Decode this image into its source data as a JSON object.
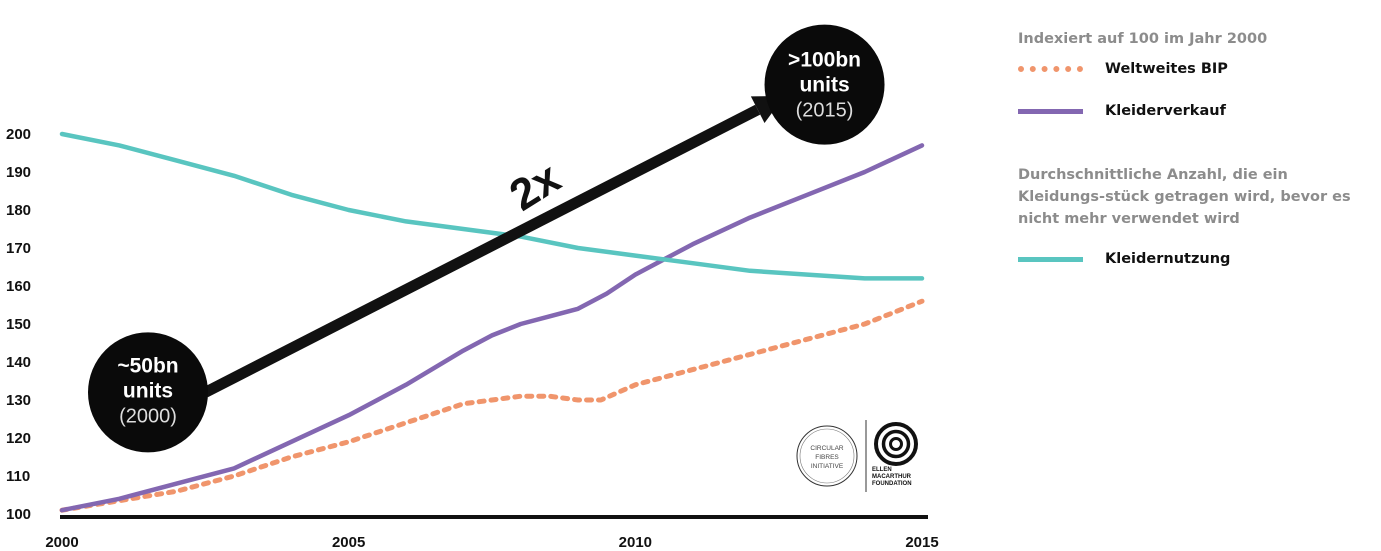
{
  "chart_data": {
    "type": "line",
    "x_ticks": [
      "2000",
      "2005",
      "2010",
      "2015"
    ],
    "y_ticks": [
      "100",
      "110",
      "120",
      "130",
      "140",
      "150",
      "160",
      "170",
      "180",
      "190",
      "200"
    ],
    "xlim": [
      2000,
      2015.2
    ],
    "ylim": [
      100,
      200
    ],
    "grid": false,
    "legend_position": "right",
    "series": [
      {
        "name": "Weltweites BIP",
        "color": "#f0956c",
        "style": "dotted",
        "x": [
          2000,
          2001,
          2002,
          2003,
          2004,
          2005,
          2006,
          2007,
          2008,
          2008.5,
          2009,
          2009.4,
          2010,
          2011,
          2012,
          2013,
          2014,
          2015
        ],
        "y": [
          101,
          103.5,
          106,
          110,
          115,
          119,
          124,
          129,
          131,
          131,
          130,
          130,
          134,
          138,
          142,
          146,
          150,
          156
        ]
      },
      {
        "name": "Kleiderverkauf",
        "color": "#8367b1",
        "style": "solid",
        "x": [
          2000,
          2001,
          2002,
          2003,
          2004,
          2005,
          2006,
          2007,
          2007.5,
          2008,
          2008.5,
          2009,
          2009.5,
          2010,
          2010.5,
          2011,
          2012,
          2013,
          2014,
          2015
        ],
        "y": [
          101,
          104,
          108,
          112,
          119,
          126,
          134,
          143,
          147,
          150,
          152,
          154,
          158,
          163,
          167,
          171,
          178,
          184,
          190,
          197
        ]
      },
      {
        "name": "Kleidernutzung",
        "color": "#59c5c0",
        "style": "solid",
        "x": [
          2000,
          2001,
          2002,
          2003,
          2004,
          2005,
          2006,
          2007,
          2008,
          2009,
          2010,
          2011,
          2012,
          2013,
          2014,
          2015
        ],
        "y": [
          200,
          197,
          193,
          189,
          184,
          180,
          177,
          175,
          173,
          170,
          168,
          166,
          164,
          163,
          162,
          162
        ]
      }
    ],
    "annotations": {
      "start": {
        "line1": "~50bn",
        "line2": "units",
        "line3": "(2000)",
        "x": 2001.5,
        "y": 132
      },
      "end": {
        "line1": ">100bn",
        "line2": "units",
        "line3": "(2015)",
        "x": 2013.3,
        "y": 213
      },
      "arrow_label": "2x",
      "arrow_from": {
        "x": 2002.5,
        "y": 132
      },
      "arrow_to": {
        "x": 2012.6,
        "y": 210
      }
    },
    "logos": {
      "cfi": [
        "CIRCULAR",
        "FIBRES",
        "INITIATIVE"
      ],
      "emf": [
        "ELLEN",
        "MACARTHUR",
        "FOUNDATION"
      ]
    }
  },
  "legend": {
    "heading1": "Indexiert auf 100 im Jahr 2000",
    "item1": "Weltweites BIP",
    "item2": "Kleiderverkauf",
    "heading2": "Durchschnittliche Anzahl, die ein Kleidungs-stück getragen wird, bevor es nicht mehr verwendet wird",
    "item3": "Kleidernutzung"
  }
}
